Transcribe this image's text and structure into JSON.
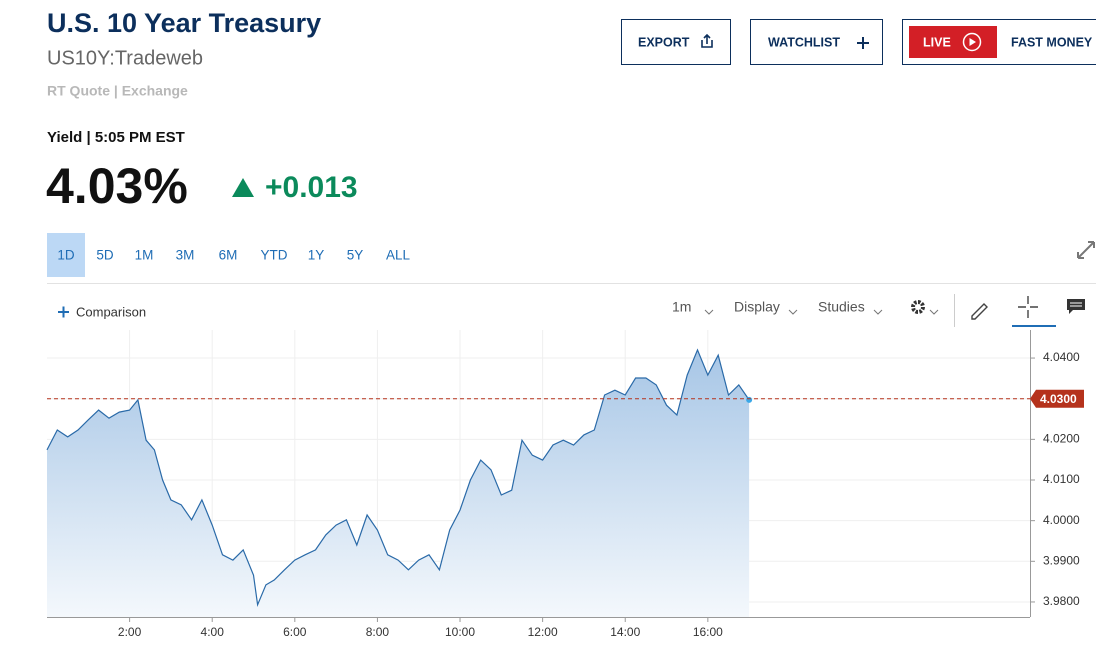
{
  "header": {
    "title": "U.S. 10 Year Treasury",
    "symbol": "US10Y:Tradeweb",
    "quote_source": "RT Quote | Exchange",
    "yield_label": "Yield | 5:05 PM EST",
    "price": "4.03%",
    "change": "+0.013"
  },
  "buttons": [
    "EXPORT",
    "WATCHLIST",
    "LIVE",
    "FAST MONEY"
  ],
  "tabs": [
    "1D",
    "5D",
    "1M",
    "3M",
    "6M",
    "YTD",
    "1Y",
    "5Y",
    "ALL"
  ],
  "selected_tab": "1D",
  "toolbar": {
    "comparison": "Comparison",
    "interval": "1m",
    "display": "Display",
    "studies": "Studies"
  },
  "chart_data": {
    "type": "line",
    "x": [
      0,
      0.25,
      0.5,
      0.75,
      1,
      1.25,
      1.5,
      1.75,
      2,
      2.2,
      2.4,
      2.6,
      2.8,
      3,
      3.25,
      3.5,
      3.75,
      4,
      4.25,
      4.5,
      4.75,
      5,
      5.1,
      5.3,
      5.5,
      5.75,
      6,
      6.25,
      6.5,
      6.75,
      7,
      7.25,
      7.5,
      7.75,
      8,
      8.25,
      8.5,
      8.75,
      9,
      9.25,
      9.5,
      9.75,
      10,
      10.25,
      10.5,
      10.75,
      11,
      11.25,
      11.5,
      11.75,
      12,
      12.25,
      12.5,
      12.75,
      13,
      13.25,
      13.5,
      13.75,
      14,
      14.25,
      14.5,
      14.75,
      15,
      15.25,
      15.5,
      15.75,
      16,
      16.25,
      16.5,
      16.75,
      17
    ],
    "series": [
      {
        "name": "US10Y",
        "color": "#2a6aa8",
        "values": [
          4.0174,
          4.0223,
          4.0206,
          4.0223,
          4.0248,
          4.0272,
          4.0252,
          4.0267,
          4.0272,
          4.0297,
          4.0198,
          4.0174,
          4.01,
          4.0051,
          4.0039,
          4.0002,
          4.0051,
          3.9989,
          3.9916,
          3.9903,
          3.9928,
          3.9866,
          3.9793,
          3.9842,
          3.9854,
          3.9879,
          3.9903,
          3.9916,
          3.9928,
          3.9965,
          3.9989,
          4.0002,
          3.994,
          4.0014,
          3.9977,
          3.9916,
          3.9903,
          3.9879,
          3.9903,
          3.9916,
          3.9879,
          3.9977,
          4.0026,
          4.01,
          4.0149,
          4.0125,
          4.0063,
          4.0075,
          4.0198,
          4.0161,
          4.0149,
          4.0186,
          4.0198,
          4.0186,
          4.0211,
          4.0223,
          4.0309,
          4.0321,
          4.0309,
          4.0351,
          4.0351,
          4.0334,
          4.0284,
          4.026,
          4.0358,
          4.042,
          4.0358,
          4.0407,
          4.0309,
          4.0334,
          4.0297
        ]
      }
    ],
    "xlim": [
      0,
      23.8
    ],
    "xticks": [
      {
        "value": 2,
        "label": "2:00"
      },
      {
        "value": 4,
        "label": "4:00"
      },
      {
        "value": 6,
        "label": "6:00"
      },
      {
        "value": 8,
        "label": "8:00"
      },
      {
        "value": 10,
        "label": "10:00"
      },
      {
        "value": 12,
        "label": "12:00"
      },
      {
        "value": 14,
        "label": "14:00"
      },
      {
        "value": 16,
        "label": "16:00"
      }
    ],
    "ylim": [
      3.9763,
      4.0469
    ],
    "yticks": [
      {
        "value": 3.98,
        "label": "3.9800"
      },
      {
        "value": 3.99,
        "label": "3.9900"
      },
      {
        "value": 4.0,
        "label": "4.0000"
      },
      {
        "value": 4.01,
        "label": "4.0100"
      },
      {
        "value": 4.02,
        "label": "4.0200"
      },
      {
        "value": 4.03,
        "label": "4.0300"
      },
      {
        "value": 4.04,
        "label": "4.0400"
      }
    ],
    "reference_line": {
      "value": 4.03,
      "label": "4.0300",
      "color": "#b5321c"
    },
    "grid": true
  }
}
